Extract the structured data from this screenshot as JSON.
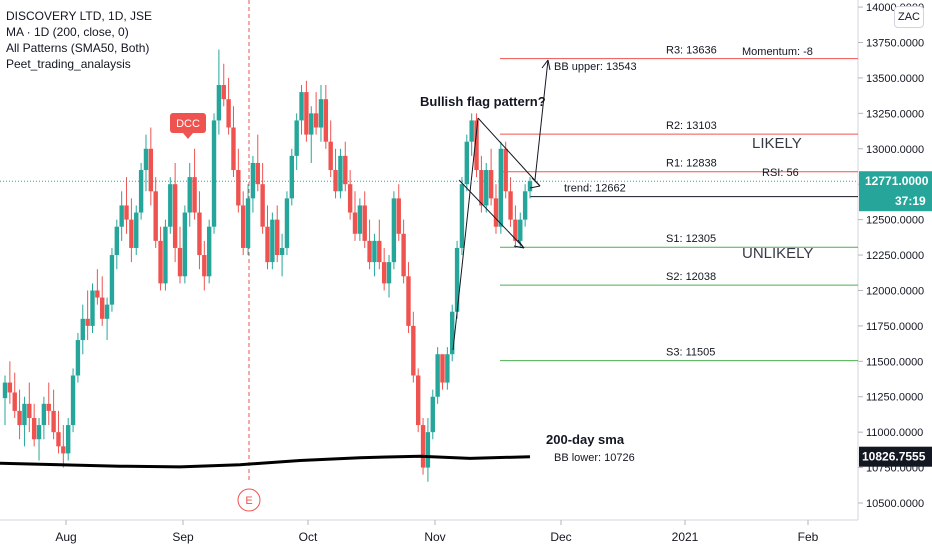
{
  "legend": {
    "title": "DISCOVERY LTD, 1D, JSE",
    "ma": "MA · 1D (200, close, 0)",
    "patterns": "All Patterns (SMA50, Both)",
    "script": "Peet_trading_analaysis"
  },
  "currency": "ZAC",
  "price_axis": {
    "ticks": [
      "14000.0000",
      "13750.0000",
      "13500.0000",
      "13250.0000",
      "13000.0000",
      "12750.0000",
      "12500.0000",
      "12250.0000",
      "12000.0000",
      "11750.0000",
      "11500.0000",
      "11250.0000",
      "11000.0000",
      "10750.0000",
      "10500.0000"
    ],
    "last_price": "12771.0000",
    "countdown": "37:19",
    "sma_value": "10826.7555"
  },
  "time_axis": {
    "labels": [
      "Aug",
      "Sep",
      "Oct",
      "Nov",
      "Dec",
      "2021",
      "Feb"
    ]
  },
  "markers": {
    "dcc": "DCC",
    "earnings": "E"
  },
  "levels": {
    "r3": "R3: 13636",
    "r2": "R2: 13103",
    "r1": "R1: 12838",
    "trend": "trend: 12662",
    "s1": "S1: 12305",
    "s2": "S2: 12038",
    "s3": "S3: 11505",
    "bb_upper": "BB upper: 13543",
    "bb_lower": "BB lower: 10726",
    "momentum": "Momentum: -8",
    "rsi": "RSI: 56"
  },
  "annotations": {
    "flag": "Bullish flag pattern?",
    "likely": "LIKELY",
    "unlikely": "UNLIKELY",
    "sma": "200-day sma"
  },
  "colors": {
    "up": "#26a69a",
    "down": "#ef5350",
    "resistance": "#ef5350",
    "support": "#4caf50",
    "price_label": "#26a69a",
    "sma_line": "#000000"
  },
  "chart_data": {
    "type": "candlestick",
    "y_range": [
      10380,
      14050
    ],
    "levels": {
      "R3": 13636,
      "R2": 13103,
      "R1": 12838,
      "trend": 12662,
      "S1": 12305,
      "S2": 12038,
      "S3": 11505
    },
    "last_close": 12771,
    "ohlc_approx": [
      [
        11240,
        11400,
        11050,
        11350
      ],
      [
        11350,
        11500,
        11200,
        11280
      ],
      [
        11280,
        11420,
        11100,
        11150
      ],
      [
        11150,
        11300,
        10950,
        11050
      ],
      [
        11050,
        11250,
        10900,
        11200
      ],
      [
        11200,
        11350,
        11000,
        11100
      ],
      [
        11100,
        11200,
        10900,
        10950
      ],
      [
        10950,
        11100,
        10800,
        11050
      ],
      [
        11050,
        11250,
        10950,
        11200
      ],
      [
        11200,
        11350,
        11050,
        11150
      ],
      [
        11150,
        11300,
        10950,
        11000
      ],
      [
        11000,
        11150,
        10850,
        10900
      ],
      [
        10900,
        11050,
        10750,
        10850
      ],
      [
        10850,
        11100,
        10800,
        11050
      ],
      [
        11050,
        11450,
        11000,
        11400
      ],
      [
        11400,
        11700,
        11350,
        11650
      ],
      [
        11650,
        11900,
        11550,
        11800
      ],
      [
        11800,
        12000,
        11650,
        11750
      ],
      [
        11750,
        12050,
        11700,
        12000
      ],
      [
        12000,
        12150,
        11900,
        11950
      ],
      [
        11950,
        12100,
        11750,
        11800
      ],
      [
        11800,
        11950,
        11650,
        11900
      ],
      [
        11900,
        12300,
        11850,
        12250
      ],
      [
        12250,
        12500,
        12150,
        12450
      ],
      [
        12450,
        12700,
        12350,
        12600
      ],
      [
        12600,
        12800,
        12400,
        12500
      ],
      [
        12500,
        12650,
        12200,
        12300
      ],
      [
        12300,
        12600,
        12250,
        12550
      ],
      [
        12550,
        12900,
        12500,
        12850
      ],
      [
        12850,
        13100,
        12700,
        13000
      ],
      [
        13000,
        13150,
        12600,
        12700
      ],
      [
        12700,
        12800,
        12300,
        12350
      ],
      [
        12350,
        12450,
        12000,
        12050
      ],
      [
        12050,
        12500,
        12000,
        12450
      ],
      [
        12450,
        12800,
        12400,
        12750
      ],
      [
        12750,
        12900,
        12200,
        12300
      ],
      [
        12300,
        12450,
        12050,
        12100
      ],
      [
        12100,
        12600,
        12050,
        12550
      ],
      [
        12550,
        12900,
        12450,
        12800
      ],
      [
        12800,
        13000,
        12500,
        12550
      ],
      [
        12550,
        12700,
        12150,
        12250
      ],
      [
        12250,
        12350,
        12000,
        12100
      ],
      [
        12100,
        12500,
        12050,
        12450
      ],
      [
        12450,
        13250,
        12400,
        13200
      ],
      [
        13200,
        13700,
        13100,
        13450
      ],
      [
        13450,
        13600,
        13300,
        13350
      ],
      [
        13350,
        13500,
        13100,
        13150
      ],
      [
        13150,
        13300,
        12800,
        12850
      ],
      [
        12850,
        13000,
        12550,
        12600
      ],
      [
        12600,
        12700,
        12250,
        12300
      ],
      [
        12300,
        12750,
        12250,
        12650
      ],
      [
        12650,
        12950,
        12550,
        12900
      ],
      [
        12900,
        13100,
        12700,
        12750
      ],
      [
        12750,
        12900,
        12400,
        12450
      ],
      [
        12450,
        12600,
        12150,
        12200
      ],
      [
        12200,
        12550,
        12150,
        12500
      ],
      [
        12500,
        12600,
        12200,
        12250
      ],
      [
        12250,
        12400,
        12100,
        12300
      ],
      [
        12300,
        12700,
        12250,
        12650
      ],
      [
        12650,
        13000,
        12600,
        12950
      ],
      [
        12950,
        13250,
        12850,
        13200
      ],
      [
        13200,
        13450,
        13100,
        13400
      ],
      [
        13400,
        13480,
        13050,
        13100
      ],
      [
        13100,
        13300,
        12900,
        13250
      ],
      [
        13250,
        13400,
        13100,
        13150
      ],
      [
        13150,
        13450,
        13050,
        13350
      ],
      [
        13350,
        13450,
        13000,
        13050
      ],
      [
        13050,
        13200,
        12800,
        12850
      ],
      [
        12850,
        13000,
        12650,
        12700
      ],
      [
        12700,
        13000,
        12650,
        12950
      ],
      [
        12950,
        13050,
        12700,
        12750
      ],
      [
        12750,
        12850,
        12500,
        12550
      ],
      [
        12550,
        12700,
        12350,
        12400
      ],
      [
        12400,
        12650,
        12350,
        12600
      ],
      [
        12600,
        12700,
        12300,
        12350
      ],
      [
        12350,
        12500,
        12150,
        12200
      ],
      [
        12200,
        12400,
        12100,
        12350
      ],
      [
        12350,
        12500,
        12150,
        12200
      ],
      [
        12200,
        12300,
        12000,
        12050
      ],
      [
        12050,
        12250,
        11950,
        12200
      ],
      [
        12200,
        12700,
        12150,
        12650
      ],
      [
        12650,
        12750,
        12350,
        12400
      ],
      [
        12400,
        12500,
        12050,
        12100
      ],
      [
        12100,
        12200,
        11700,
        11750
      ],
      [
        11750,
        11850,
        11350,
        11400
      ],
      [
        11400,
        11450,
        11000,
        11050
      ],
      [
        11050,
        11100,
        10700,
        10750
      ],
      [
        10750,
        11100,
        10650,
        11000
      ],
      [
        11000,
        11300,
        10950,
        11250
      ],
      [
        11250,
        11600,
        11200,
        11550
      ],
      [
        11550,
        11450,
        11300,
        11350
      ],
      [
        11350,
        11600,
        11300,
        11550
      ],
      [
        11550,
        11900,
        11500,
        11850
      ],
      [
        11850,
        12350,
        11800,
        12300
      ],
      [
        12300,
        12800,
        12250,
        12750
      ],
      [
        12750,
        13100,
        12700,
        13050
      ],
      [
        13050,
        13250,
        12950,
        13200
      ],
      [
        13200,
        13250,
        12800,
        12850
      ],
      [
        12850,
        12950,
        12550,
        12600
      ],
      [
        12600,
        12900,
        12550,
        12850
      ],
      [
        12850,
        13000,
        12600,
        12650
      ],
      [
        12650,
        12750,
        12400,
        12450
      ],
      [
        12450,
        13050,
        12400,
        13000
      ],
      [
        13000,
        13050,
        12650,
        12700
      ],
      [
        12700,
        12800,
        12450,
        12500
      ],
      [
        12500,
        12600,
        12300,
        12350
      ],
      [
        12350,
        12550,
        12300,
        12500
      ],
      [
        12500,
        12750,
        12450,
        12700
      ],
      [
        12700,
        12800,
        12650,
        12771
      ]
    ]
  }
}
